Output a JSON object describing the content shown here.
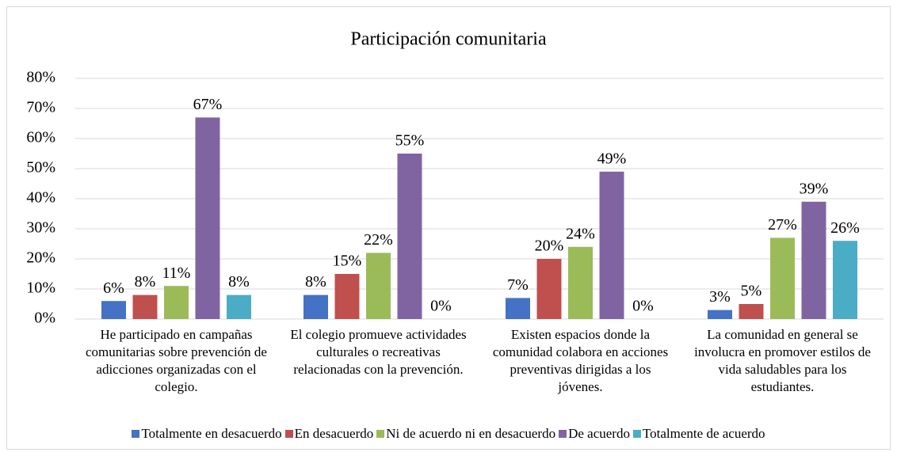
{
  "chart_data": {
    "type": "bar",
    "title": "Participación comunitaria",
    "categories": [
      "He participado en campañas comunitarias sobre prevención de adicciones organizadas con el colegio.",
      "El colegio promueve actividades culturales o recreativas relacionadas con la prevención.",
      "Existen espacios donde la comunidad colabora en acciones preventivas dirigidas a los jóvenes.",
      "La comunidad en general se involucra en promover estilos de vida saludables para los estudiantes."
    ],
    "series": [
      {
        "name": "Totalmente en desacuerdo",
        "color": "#4472c4",
        "values": [
          6,
          8,
          7,
          3
        ],
        "value_labels": [
          "6%",
          "8%",
          "7%",
          "3%"
        ]
      },
      {
        "name": "En desacuerdo",
        "color": "#c0504d",
        "values": [
          8,
          15,
          20,
          5
        ],
        "value_labels": [
          "8%",
          "15%",
          "20%",
          "5%"
        ]
      },
      {
        "name": "Ni de acuerdo ni en desacuerdo",
        "color": "#9bbb59",
        "values": [
          11,
          22,
          24,
          27
        ],
        "value_labels": [
          "11%",
          "22%",
          "24%",
          "27%"
        ]
      },
      {
        "name": "De acuerdo",
        "color": "#8064a2",
        "values": [
          67,
          55,
          49,
          39
        ],
        "value_labels": [
          "67%",
          "55%",
          "49%",
          "39%"
        ]
      },
      {
        "name": "Totalmente de acuerdo",
        "color": "#4bacc6",
        "values": [
          8,
          0,
          0,
          26
        ],
        "value_labels": [
          "8%",
          "0%",
          "0%",
          "26%"
        ]
      }
    ],
    "ylim": [
      0,
      80
    ],
    "yticks": [
      {
        "value": 0,
        "label": "0%"
      },
      {
        "value": 10,
        "label": "10%"
      },
      {
        "value": 20,
        "label": "20%"
      },
      {
        "value": 30,
        "label": "30%"
      },
      {
        "value": 40,
        "label": "40%"
      },
      {
        "value": 50,
        "label": "50%"
      },
      {
        "value": 60,
        "label": "60%"
      },
      {
        "value": 70,
        "label": "70%"
      },
      {
        "value": 80,
        "label": "80%"
      }
    ],
    "grid": true,
    "legend": "bottom"
  }
}
